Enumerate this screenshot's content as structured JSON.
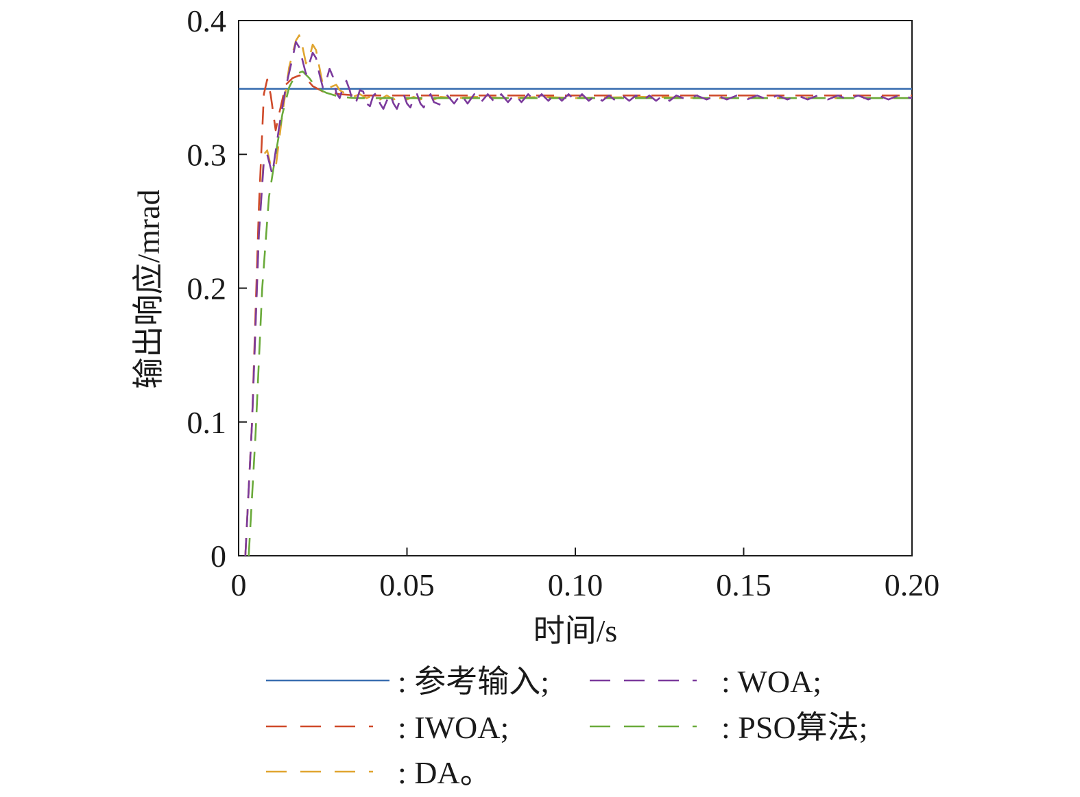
{
  "chart_data": {
    "type": "line",
    "title": "",
    "xlabel": "时间/s",
    "ylabel": "输出响应/mrad",
    "xlim": [
      0,
      0.2
    ],
    "ylim": [
      0,
      0.4
    ],
    "xticks": [
      {
        "value": 0,
        "label": "0"
      },
      {
        "value": 0.05,
        "label": "0.05"
      },
      {
        "value": 0.1,
        "label": "0.10"
      },
      {
        "value": 0.15,
        "label": "0.15"
      },
      {
        "value": 0.2,
        "label": "0.20"
      }
    ],
    "yticks": [
      {
        "value": 0,
        "label": "0"
      },
      {
        "value": 0.1,
        "label": "0.1"
      },
      {
        "value": 0.2,
        "label": "0.2"
      },
      {
        "value": 0.3,
        "label": "0.3"
      },
      {
        "value": 0.4,
        "label": "0.4"
      }
    ],
    "grid": false,
    "legend_position": "bottom",
    "series": [
      {
        "name": "参考输入",
        "legend_label": ": 参考输入;",
        "color": "#3a6eb0",
        "dash": "solid",
        "points": [
          [
            0,
            0.349
          ],
          [
            0.2,
            0.349
          ]
        ]
      },
      {
        "name": "IWOA",
        "legend_label": ": IWOA;",
        "color": "#cf4a2a",
        "dash": "dash",
        "points": [
          [
            0.002,
            0
          ],
          [
            0.004,
            0.1
          ],
          [
            0.006,
            0.26
          ],
          [
            0.0075,
            0.345
          ],
          [
            0.0085,
            0.356
          ],
          [
            0.0095,
            0.345
          ],
          [
            0.011,
            0.318
          ],
          [
            0.012,
            0.33
          ],
          [
            0.014,
            0.352
          ],
          [
            0.016,
            0.357
          ],
          [
            0.018,
            0.359
          ],
          [
            0.02,
            0.357
          ],
          [
            0.022,
            0.351
          ],
          [
            0.025,
            0.347
          ],
          [
            0.03,
            0.345
          ],
          [
            0.035,
            0.344
          ],
          [
            0.04,
            0.344
          ],
          [
            0.06,
            0.344
          ],
          [
            0.08,
            0.344
          ],
          [
            0.1,
            0.344
          ],
          [
            0.12,
            0.344
          ],
          [
            0.14,
            0.344
          ],
          [
            0.16,
            0.344
          ],
          [
            0.18,
            0.344
          ],
          [
            0.2,
            0.344
          ]
        ]
      },
      {
        "name": "WOA",
        "legend_label": ": WOA;",
        "color": "#7b3a9c",
        "dash": "dash",
        "points": [
          [
            0.002,
            0
          ],
          [
            0.004,
            0.1
          ],
          [
            0.006,
            0.24
          ],
          [
            0.0075,
            0.295
          ],
          [
            0.0085,
            0.3
          ],
          [
            0.01,
            0.285
          ],
          [
            0.012,
            0.32
          ],
          [
            0.014,
            0.35
          ],
          [
            0.016,
            0.372
          ],
          [
            0.017,
            0.384
          ],
          [
            0.018,
            0.38
          ],
          [
            0.019,
            0.37
          ],
          [
            0.02,
            0.36
          ],
          [
            0.021,
            0.368
          ],
          [
            0.022,
            0.376
          ],
          [
            0.023,
            0.372
          ],
          [
            0.024,
            0.36
          ],
          [
            0.025,
            0.35
          ],
          [
            0.026,
            0.355
          ],
          [
            0.027,
            0.364
          ],
          [
            0.028,
            0.358
          ],
          [
            0.029,
            0.346
          ],
          [
            0.03,
            0.342
          ],
          [
            0.031,
            0.35
          ],
          [
            0.032,
            0.355
          ],
          [
            0.033,
            0.348
          ],
          [
            0.034,
            0.338
          ],
          [
            0.035,
            0.34
          ],
          [
            0.036,
            0.348
          ],
          [
            0.037,
            0.347
          ],
          [
            0.038,
            0.338
          ],
          [
            0.039,
            0.336
          ],
          [
            0.04,
            0.344
          ],
          [
            0.041,
            0.346
          ],
          [
            0.042,
            0.338
          ],
          [
            0.043,
            0.334
          ],
          [
            0.044,
            0.34
          ],
          [
            0.045,
            0.345
          ],
          [
            0.046,
            0.338
          ],
          [
            0.047,
            0.334
          ],
          [
            0.048,
            0.341
          ],
          [
            0.049,
            0.345
          ],
          [
            0.05,
            0.338
          ],
          [
            0.051,
            0.335
          ],
          [
            0.052,
            0.342
          ],
          [
            0.053,
            0.345
          ],
          [
            0.054,
            0.338
          ],
          [
            0.055,
            0.335
          ],
          [
            0.056,
            0.342
          ],
          [
            0.057,
            0.345
          ],
          [
            0.058,
            0.339
          ],
          [
            0.06,
            0.337
          ],
          [
            0.062,
            0.344
          ],
          [
            0.064,
            0.338
          ],
          [
            0.066,
            0.345
          ],
          [
            0.068,
            0.338
          ],
          [
            0.07,
            0.345
          ],
          [
            0.072,
            0.339
          ],
          [
            0.074,
            0.345
          ],
          [
            0.076,
            0.339
          ],
          [
            0.078,
            0.345
          ],
          [
            0.08,
            0.339
          ],
          [
            0.082,
            0.345
          ],
          [
            0.084,
            0.339
          ],
          [
            0.086,
            0.345
          ],
          [
            0.088,
            0.34
          ],
          [
            0.09,
            0.345
          ],
          [
            0.092,
            0.34
          ],
          [
            0.094,
            0.345
          ],
          [
            0.096,
            0.34
          ],
          [
            0.098,
            0.345
          ],
          [
            0.1,
            0.34
          ],
          [
            0.102,
            0.345
          ],
          [
            0.104,
            0.34
          ],
          [
            0.106,
            0.344
          ],
          [
            0.108,
            0.34
          ],
          [
            0.11,
            0.344
          ],
          [
            0.112,
            0.34
          ],
          [
            0.114,
            0.344
          ],
          [
            0.116,
            0.34
          ],
          [
            0.118,
            0.344
          ],
          [
            0.12,
            0.34
          ],
          [
            0.122,
            0.344
          ],
          [
            0.124,
            0.34
          ],
          [
            0.126,
            0.344
          ],
          [
            0.128,
            0.34
          ],
          [
            0.13,
            0.344
          ],
          [
            0.133,
            0.341
          ],
          [
            0.136,
            0.344
          ],
          [
            0.139,
            0.341
          ],
          [
            0.142,
            0.344
          ],
          [
            0.145,
            0.341
          ],
          [
            0.148,
            0.344
          ],
          [
            0.151,
            0.341
          ],
          [
            0.154,
            0.344
          ],
          [
            0.157,
            0.341
          ],
          [
            0.16,
            0.344
          ],
          [
            0.163,
            0.341
          ],
          [
            0.166,
            0.344
          ],
          [
            0.169,
            0.341
          ],
          [
            0.172,
            0.344
          ],
          [
            0.175,
            0.341
          ],
          [
            0.178,
            0.344
          ],
          [
            0.181,
            0.341
          ],
          [
            0.184,
            0.344
          ],
          [
            0.187,
            0.341
          ],
          [
            0.19,
            0.344
          ],
          [
            0.193,
            0.341
          ],
          [
            0.196,
            0.344
          ],
          [
            0.2,
            0.342
          ]
        ]
      },
      {
        "name": "PSO算法",
        "legend_label": ": PSO算法;",
        "color": "#6aaa3a",
        "dash": "dash",
        "points": [
          [
            0.003,
            0
          ],
          [
            0.005,
            0.09
          ],
          [
            0.007,
            0.2
          ],
          [
            0.009,
            0.268
          ],
          [
            0.011,
            0.3
          ],
          [
            0.013,
            0.33
          ],
          [
            0.015,
            0.35
          ],
          [
            0.017,
            0.36
          ],
          [
            0.019,
            0.362
          ],
          [
            0.021,
            0.357
          ],
          [
            0.023,
            0.35
          ],
          [
            0.026,
            0.346
          ],
          [
            0.03,
            0.343
          ],
          [
            0.035,
            0.342
          ],
          [
            0.04,
            0.342
          ],
          [
            0.05,
            0.342
          ],
          [
            0.06,
            0.342
          ],
          [
            0.08,
            0.342
          ],
          [
            0.1,
            0.342
          ],
          [
            0.12,
            0.342
          ],
          [
            0.14,
            0.342
          ],
          [
            0.16,
            0.342
          ],
          [
            0.18,
            0.342
          ],
          [
            0.2,
            0.342
          ]
        ]
      },
      {
        "name": "DA",
        "legend_label": ": DA。",
        "color": "#e0a530",
        "dash": "dash",
        "points": [
          [
            0.002,
            0
          ],
          [
            0.004,
            0.1
          ],
          [
            0.006,
            0.24
          ],
          [
            0.0075,
            0.3
          ],
          [
            0.0085,
            0.303
          ],
          [
            0.0095,
            0.292
          ],
          [
            0.011,
            0.29
          ],
          [
            0.013,
            0.33
          ],
          [
            0.015,
            0.365
          ],
          [
            0.017,
            0.385
          ],
          [
            0.018,
            0.389
          ],
          [
            0.019,
            0.38
          ],
          [
            0.02,
            0.368
          ],
          [
            0.021,
            0.372
          ],
          [
            0.022,
            0.382
          ],
          [
            0.023,
            0.378
          ],
          [
            0.024,
            0.365
          ],
          [
            0.025,
            0.352
          ],
          [
            0.027,
            0.35
          ],
          [
            0.029,
            0.352
          ],
          [
            0.03,
            0.348
          ],
          [
            0.032,
            0.345
          ],
          [
            0.034,
            0.343
          ],
          [
            0.036,
            0.345
          ],
          [
            0.038,
            0.342
          ],
          [
            0.04,
            0.344
          ],
          [
            0.042,
            0.341
          ],
          [
            0.044,
            0.344
          ],
          [
            0.046,
            0.341
          ],
          [
            0.048,
            0.343
          ],
          [
            0.05,
            0.341
          ],
          [
            0.052,
            0.343
          ],
          [
            0.054,
            0.341
          ],
          [
            0.056,
            0.343
          ],
          [
            0.058,
            0.341
          ],
          [
            0.06,
            0.343
          ],
          [
            0.065,
            0.342
          ],
          [
            0.07,
            0.343
          ],
          [
            0.08,
            0.342
          ],
          [
            0.09,
            0.343
          ],
          [
            0.1,
            0.342
          ],
          [
            0.12,
            0.343
          ],
          [
            0.14,
            0.342
          ],
          [
            0.16,
            0.342
          ],
          [
            0.18,
            0.342
          ],
          [
            0.2,
            0.342
          ]
        ]
      }
    ]
  }
}
